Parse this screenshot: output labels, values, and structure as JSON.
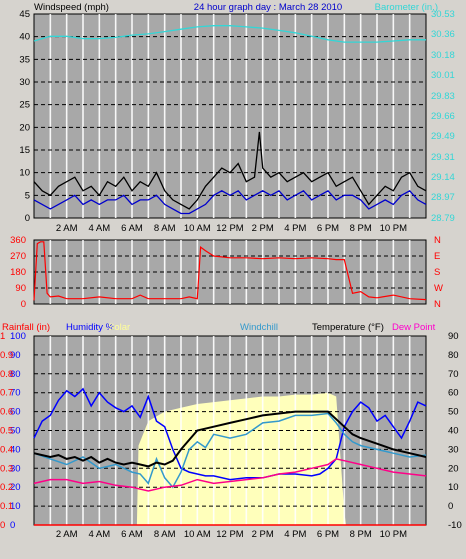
{
  "chart_data": [
    {
      "type": "line",
      "title": "24 hour graph day : March 28 2010",
      "ylabel": "Windspeed (mph)",
      "y2label": "Barometer (in.)",
      "ylim": [
        0,
        45
      ],
      "y2lim": [
        28.79,
        30.53
      ],
      "yticks": [
        "0",
        "5",
        "10",
        "15",
        "20",
        "25",
        "30",
        "35",
        "40",
        "45"
      ],
      "y2ticks": [
        "28.79",
        "28.97",
        "29.14",
        "29.31",
        "29.49",
        "29.66",
        "29.83",
        "30.01",
        "30.18",
        "30.36",
        "30.53"
      ],
      "xlim": [
        0,
        24
      ],
      "xticks": [
        {
          "h": 2,
          "label": "2 AM"
        },
        {
          "h": 4,
          "label": "4 AM"
        },
        {
          "h": 6,
          "label": "6 AM"
        },
        {
          "h": 8,
          "label": "8 AM"
        },
        {
          "h": 10,
          "label": "10 AM"
        },
        {
          "h": 12,
          "label": "12 PM"
        },
        {
          "h": 14,
          "label": "2 PM"
        },
        {
          "h": 16,
          "label": "4 PM"
        },
        {
          "h": 18,
          "label": "6 PM"
        },
        {
          "h": 20,
          "label": "8 PM"
        },
        {
          "h": 22,
          "label": "10 PM"
        }
      ],
      "series": [
        {
          "name": "Barometer",
          "axis": "right",
          "color": "#33d6d6",
          "x": [
            0,
            1,
            2,
            3,
            4,
            5,
            6,
            7,
            8,
            9,
            10,
            11,
            12,
            13,
            14,
            15,
            16,
            17,
            18,
            19,
            20,
            21,
            22,
            23,
            24
          ],
          "y": [
            30.3,
            30.34,
            30.34,
            30.32,
            30.32,
            30.33,
            30.35,
            30.36,
            30.38,
            30.4,
            30.42,
            30.43,
            30.43,
            30.42,
            30.41,
            30.39,
            30.37,
            30.34,
            30.31,
            30.29,
            30.29,
            30.29,
            30.3,
            30.31,
            30.31
          ]
        },
        {
          "name": "Gust",
          "axis": "left",
          "color": "#000000",
          "x": [
            0,
            0.5,
            1,
            1.5,
            2,
            2.5,
            3,
            3.5,
            4,
            4.5,
            5,
            5.5,
            6,
            6.5,
            7,
            7.5,
            8,
            8.5,
            9,
            9.5,
            10,
            10.5,
            11,
            11.5,
            12,
            12.5,
            13,
            13.5,
            13.8,
            14,
            14.5,
            15,
            15.5,
            16,
            16.5,
            17,
            17.5,
            18,
            18.5,
            19,
            19.5,
            20,
            20.5,
            21,
            21.5,
            22,
            22.5,
            23,
            23.5,
            24
          ],
          "y": [
            8,
            6,
            5,
            7,
            8,
            9,
            6,
            7,
            5,
            8,
            7,
            9,
            6,
            8,
            7,
            10,
            6,
            4,
            3,
            2,
            4,
            7,
            9,
            11,
            10,
            12,
            8,
            9,
            19,
            11,
            9,
            10,
            8,
            9,
            10,
            8,
            9,
            10,
            7,
            8,
            9,
            6,
            3,
            5,
            7,
            6,
            9,
            10,
            7,
            6
          ]
        },
        {
          "name": "Windspeed",
          "axis": "left",
          "color": "#0000cc",
          "x": [
            0,
            0.5,
            1,
            1.5,
            2,
            2.5,
            3,
            3.5,
            4,
            4.5,
            5,
            5.5,
            6,
            6.5,
            7,
            7.5,
            8,
            8.5,
            9,
            9.5,
            10,
            10.5,
            11,
            11.5,
            12,
            12.5,
            13,
            13.5,
            14,
            14.5,
            15,
            15.5,
            16,
            16.5,
            17,
            17.5,
            18,
            18.5,
            19,
            19.5,
            20,
            20.5,
            21,
            21.5,
            22,
            22.5,
            23,
            23.5,
            24
          ],
          "y": [
            4,
            3,
            2,
            3,
            4,
            5,
            3,
            4,
            3,
            4,
            4,
            5,
            3,
            4,
            4,
            5,
            3,
            2,
            1,
            1,
            2,
            3,
            5,
            6,
            5,
            6,
            4,
            5,
            6,
            5,
            6,
            4,
            5,
            6,
            4,
            5,
            6,
            4,
            5,
            5,
            4,
            2,
            3,
            4,
            3,
            5,
            6,
            4,
            3
          ]
        }
      ]
    },
    {
      "type": "line",
      "ylabel": "",
      "ylim": [
        0,
        360
      ],
      "yticks": [
        "0",
        "90",
        "180",
        "270",
        "360"
      ],
      "y2ticks": [
        "N",
        "W",
        "S",
        "E",
        "N"
      ],
      "xlim": [
        0,
        24
      ],
      "series": [
        {
          "name": "Wind direction",
          "color": "#ff0000",
          "x": [
            0,
            0.2,
            0.4,
            0.6,
            0.8,
            1,
            1.5,
            2,
            3,
            4,
            5,
            6,
            6.5,
            7,
            8,
            9,
            9.5,
            10,
            10.2,
            10.5,
            11,
            12,
            13,
            14,
            15,
            16,
            17,
            18,
            18.5,
            19,
            19.5,
            20,
            20.5,
            21,
            22,
            23,
            24
          ],
          "y": [
            20,
            340,
            350,
            350,
            60,
            40,
            45,
            30,
            30,
            40,
            30,
            30,
            50,
            30,
            30,
            30,
            40,
            30,
            320,
            300,
            270,
            260,
            260,
            255,
            260,
            255,
            260,
            255,
            250,
            250,
            60,
            70,
            40,
            35,
            50,
            30,
            25
          ]
        }
      ]
    },
    {
      "type": "line",
      "legend": [
        {
          "name": "Rainfall (in)",
          "color": "#ff0000"
        },
        {
          "name": "Humidity %",
          "color": "#0000ff"
        },
        {
          "name": "Solar",
          "color": "#ffff99"
        },
        {
          "name": "Windchill",
          "color": "#3399cc"
        },
        {
          "name": "Temperature (°F)",
          "color": "#000000"
        },
        {
          "name": "Dew Point",
          "color": "#ff00cc"
        }
      ],
      "ylim_humidity": [
        0,
        100
      ],
      "ylim_temperature": [
        -10,
        90
      ],
      "ylim_rain": [
        0,
        1
      ],
      "yticks_humidity": [
        "0",
        "10",
        "20",
        "30",
        "40",
        "50",
        "60",
        "70",
        "80",
        "90",
        "100"
      ],
      "yticks_rain": [
        "0",
        "0.1",
        "0.2",
        "0.3",
        "0.4",
        "0.5",
        "0.6",
        "0.7",
        "0.8",
        "0.9",
        "1"
      ],
      "yticks_temperature": [
        "-10",
        "0",
        "10",
        "20",
        "30",
        "40",
        "50",
        "60",
        "70",
        "80",
        "90"
      ],
      "xlim": [
        0,
        24
      ],
      "series": [
        {
          "name": "Solar",
          "axis": "temperature",
          "color": "#ffffbb",
          "x": [
            0,
            6.3,
            6.4,
            7,
            8,
            9,
            10,
            11,
            12,
            13,
            14,
            15,
            16,
            17,
            18,
            18.5,
            19,
            19.1,
            24
          ],
          "y": [
            -10,
            -10,
            32,
            45,
            50,
            52,
            54,
            55,
            56,
            57,
            58,
            58,
            59,
            59,
            60,
            58,
            -3,
            -10,
            -10
          ]
        },
        {
          "name": "Humidity",
          "axis": "humidity",
          "color": "#0000ff",
          "x": [
            0,
            0.5,
            1,
            1.5,
            2,
            2.5,
            3,
            3.5,
            4,
            4.5,
            5,
            5.5,
            6,
            6.5,
            7,
            7.5,
            8,
            8.5,
            9,
            9.5,
            10,
            10.5,
            11,
            12,
            13,
            14,
            15,
            16,
            17,
            17.5,
            18,
            18.5,
            19,
            19.5,
            20,
            20.5,
            21,
            21.5,
            22,
            22.5,
            23,
            23.5,
            24
          ],
          "y": [
            46,
            55,
            58,
            66,
            71,
            68,
            72,
            63,
            70,
            65,
            62,
            60,
            63,
            57,
            68,
            55,
            52,
            40,
            30,
            28,
            27,
            26,
            26,
            24,
            25,
            25,
            27,
            27,
            26,
            27,
            30,
            35,
            52,
            60,
            65,
            62,
            55,
            58,
            52,
            46,
            55,
            65,
            63
          ]
        },
        {
          "name": "Windchill",
          "axis": "temperature",
          "color": "#3399cc",
          "x": [
            0,
            1,
            2,
            3,
            4,
            5,
            6,
            6.5,
            7,
            7.5,
            8,
            8.5,
            9,
            9.5,
            10,
            10.5,
            11,
            12,
            13,
            14,
            15,
            16,
            17,
            18,
            18.5,
            19,
            19.5,
            20,
            21,
            22,
            23,
            24
          ],
          "y": [
            28,
            25,
            22,
            26,
            20,
            22,
            18,
            17,
            12,
            25,
            15,
            10,
            18,
            30,
            34,
            31,
            38,
            36,
            38,
            44,
            45,
            48,
            48,
            49,
            44,
            38,
            34,
            32,
            30,
            28,
            26,
            27
          ]
        },
        {
          "name": "Temperature",
          "axis": "temperature",
          "color": "#000000",
          "x": [
            0,
            0.5,
            1,
            1.5,
            2,
            2.5,
            3,
            3.5,
            4,
            4.5,
            5,
            5.5,
            6,
            6.5,
            7,
            7.5,
            8,
            8.5,
            9,
            9.5,
            10,
            11,
            12,
            13,
            14,
            15,
            16,
            17,
            18,
            18.5,
            19,
            19.5,
            20,
            21,
            22,
            23,
            24
          ],
          "y": [
            28,
            27,
            26,
            27,
            25,
            26,
            24,
            26,
            23,
            25,
            23,
            22,
            23,
            22,
            21,
            23,
            22,
            24,
            30,
            35,
            40,
            42,
            44,
            46,
            48,
            49,
            50,
            50,
            50,
            46,
            42,
            38,
            36,
            33,
            30,
            28,
            26
          ]
        },
        {
          "name": "Dew Point",
          "axis": "temperature",
          "color": "#ff0088",
          "x": [
            0,
            1,
            2,
            3,
            4,
            5,
            6,
            7,
            8,
            9,
            10,
            11,
            12,
            13,
            14,
            15,
            16,
            17,
            18,
            18.5,
            19,
            20,
            21,
            22,
            23,
            24
          ],
          "y": [
            12,
            14,
            14,
            12,
            13,
            11,
            10,
            8,
            10,
            11,
            14,
            12,
            13,
            14,
            15,
            17,
            18,
            20,
            22,
            25,
            24,
            22,
            20,
            18,
            17,
            16
          ]
        },
        {
          "name": "Rainfall",
          "axis": "rain",
          "color": "#ff0000",
          "x": [
            0,
            24
          ],
          "y": [
            0,
            0
          ]
        }
      ]
    }
  ]
}
